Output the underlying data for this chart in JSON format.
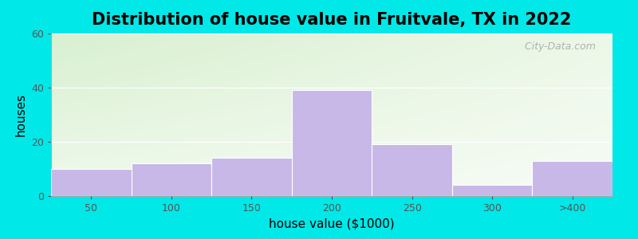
{
  "title": "Distribution of house value in Fruitvale, TX in 2022",
  "xlabel": "house value ($1000)",
  "ylabel": "houses",
  "categories": [
    "50",
    "100",
    "150",
    "200",
    "250",
    "300",
    ">400"
  ],
  "values": [
    10,
    12,
    14,
    39,
    19,
    4,
    13
  ],
  "bar_color": "#c8b8e8",
  "ylim": [
    0,
    60
  ],
  "yticks": [
    0,
    20,
    40,
    60
  ],
  "background_outer": "#00e8e8",
  "bg_top_left": "#d8f0d0",
  "bg_top_right": "#f8fff8",
  "bg_bottom_left": "#ffffff",
  "bg_bottom_right": "#ffffff",
  "title_fontsize": 15,
  "axis_label_fontsize": 11,
  "tick_fontsize": 9,
  "watermark_text": " City-Data.com"
}
